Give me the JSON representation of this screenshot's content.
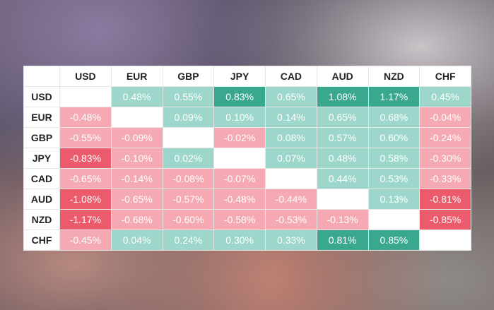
{
  "table": {
    "columns": [
      "USD",
      "EUR",
      "GBP",
      "JPY",
      "CAD",
      "AUD",
      "NZD",
      "CHF"
    ],
    "rows": [
      {
        "label": "USD",
        "cells": [
          null,
          "0.48%",
          "0.55%",
          "0.83%",
          "0.65%",
          "1.08%",
          "1.17%",
          "0.45%"
        ]
      },
      {
        "label": "EUR",
        "cells": [
          "-0.48%",
          null,
          "0.09%",
          "0.10%",
          "0.14%",
          "0.65%",
          "0.68%",
          "-0.04%"
        ]
      },
      {
        "label": "GBP",
        "cells": [
          "-0.55%",
          "-0.09%",
          null,
          "-0.02%",
          "0.08%",
          "0.57%",
          "0.60%",
          "-0.24%"
        ]
      },
      {
        "label": "JPY",
        "cells": [
          "-0.83%",
          "-0.10%",
          "0.02%",
          null,
          "0.07%",
          "0.48%",
          "0.58%",
          "-0.30%"
        ]
      },
      {
        "label": "CAD",
        "cells": [
          "-0.65%",
          "-0.14%",
          "-0.08%",
          "-0.07%",
          null,
          "0.44%",
          "0.53%",
          "-0.33%"
        ]
      },
      {
        "label": "AUD",
        "cells": [
          "-1.08%",
          "-0.65%",
          "-0.57%",
          "-0.48%",
          "-0.44%",
          null,
          "0.13%",
          "-0.81%"
        ]
      },
      {
        "label": "NZD",
        "cells": [
          "-1.17%",
          "-0.68%",
          "-0.60%",
          "-0.58%",
          "-0.53%",
          "-0.13%",
          null,
          "-0.85%"
        ]
      },
      {
        "label": "CHF",
        "cells": [
          "-0.45%",
          "0.04%",
          "0.24%",
          "0.30%",
          "0.33%",
          "0.81%",
          "0.85%",
          null
        ]
      }
    ]
  }
}
